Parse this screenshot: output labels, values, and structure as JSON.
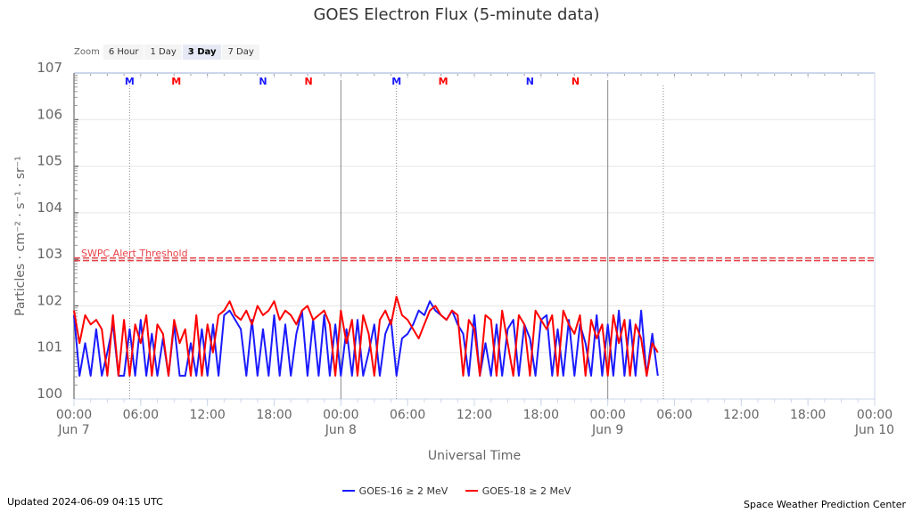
{
  "title": "GOES Electron Flux (5-minute data)",
  "zoom": {
    "label": "Zoom",
    "buttons": [
      "6 Hour",
      "1 Day",
      "3 Day",
      "7 Day"
    ],
    "active": "3 Day"
  },
  "footer": {
    "updated": "Updated 2024-06-09 04:15 UTC",
    "credit": "Space Weather Prediction Center"
  },
  "colors": {
    "goes16": "#1a1aff",
    "goes18": "#ff0000",
    "threshold": "#e8434a",
    "grid": "#e6e6e6"
  },
  "chart_data": {
    "type": "line",
    "title": "GOES Electron Flux (5-minute data)",
    "xlabel": "Universal Time",
    "ylabel": "Particles · cm⁻² · s⁻¹ · sr⁻¹",
    "y_scale": "log",
    "ylim_log10": [
      0,
      7
    ],
    "y_tick_labels": [
      "100",
      "101",
      "102",
      "103",
      "104",
      "105",
      "106",
      "107"
    ],
    "xlim_hours": [
      0,
      72
    ],
    "x_ticks": [
      {
        "h": 0,
        "label": "00:00",
        "date": "Jun 7"
      },
      {
        "h": 6,
        "label": "06:00"
      },
      {
        "h": 12,
        "label": "12:00"
      },
      {
        "h": 18,
        "label": "18:00"
      },
      {
        "h": 24,
        "label": "00:00",
        "date": "Jun 8"
      },
      {
        "h": 30,
        "label": "06:00"
      },
      {
        "h": 36,
        "label": "12:00"
      },
      {
        "h": 42,
        "label": "18:00"
      },
      {
        "h": 48,
        "label": "00:00",
        "date": "Jun 9"
      },
      {
        "h": 54,
        "label": "06:00"
      },
      {
        "h": 60,
        "label": "12:00"
      },
      {
        "h": 66,
        "label": "18:00"
      },
      {
        "h": 72,
        "label": "00:00",
        "date": "Jun 10"
      }
    ],
    "day_lines_hours": [
      24,
      48
    ],
    "dotted_lines_hours": [
      5,
      29,
      53
    ],
    "threshold": {
      "label": "SWPC Alert Threshold",
      "log10": 3
    },
    "markers": [
      {
        "h": 5,
        "text": "M",
        "series": "GOES-16"
      },
      {
        "h": 9.2,
        "text": "M",
        "series": "GOES-18"
      },
      {
        "h": 17,
        "text": "N",
        "series": "GOES-16"
      },
      {
        "h": 21.1,
        "text": "N",
        "series": "GOES-18"
      },
      {
        "h": 29,
        "text": "M",
        "series": "GOES-16"
      },
      {
        "h": 33.2,
        "text": "M",
        "series": "GOES-18"
      },
      {
        "h": 41,
        "text": "N",
        "series": "GOES-16"
      },
      {
        "h": 45.1,
        "text": "N",
        "series": "GOES-18"
      }
    ],
    "x_step_hours": 0.5,
    "series": [
      {
        "name": "GOES-16 ≥ 2 MeV",
        "key": "goes16",
        "log10_values": [
          1.8,
          0.5,
          1.2,
          0.5,
          1.5,
          0.5,
          1.0,
          1.6,
          0.5,
          0.5,
          1.5,
          0.5,
          1.7,
          0.5,
          1.4,
          0.5,
          1.3,
          0.5,
          1.6,
          0.5,
          0.5,
          1.2,
          0.5,
          1.5,
          0.5,
          1.6,
          0.5,
          1.8,
          1.9,
          1.7,
          1.5,
          0.5,
          1.7,
          0.5,
          1.5,
          0.5,
          1.8,
          0.5,
          1.6,
          0.5,
          1.4,
          1.9,
          0.5,
          1.7,
          0.5,
          1.8,
          0.5,
          1.6,
          0.5,
          1.5,
          0.5,
          1.7,
          0.5,
          1.0,
          1.6,
          0.5,
          1.4,
          1.7,
          0.5,
          1.3,
          1.4,
          1.6,
          1.9,
          1.8,
          2.1,
          1.9,
          1.8,
          1.7,
          1.9,
          1.6,
          1.4,
          0.5,
          1.8,
          0.5,
          1.2,
          0.5,
          1.6,
          0.5,
          1.5,
          1.7,
          0.5,
          1.6,
          1.3,
          0.5,
          1.7,
          1.8,
          0.5,
          1.5,
          0.5,
          1.7,
          0.5,
          1.6,
          1.2,
          0.5,
          1.8,
          0.5,
          1.6,
          0.5,
          1.9,
          0.5,
          1.7,
          0.5,
          1.9,
          0.5,
          1.4,
          0.5
        ]
      },
      {
        "name": "GOES-18 ≥ 2 MeV",
        "key": "goes18",
        "log10_values": [
          1.9,
          1.2,
          1.8,
          1.6,
          1.7,
          1.5,
          0.5,
          1.8,
          0.5,
          1.7,
          0.5,
          1.6,
          1.2,
          1.8,
          0.5,
          1.6,
          1.4,
          0.5,
          1.7,
          1.2,
          1.5,
          0.5,
          1.8,
          0.5,
          1.6,
          1.0,
          1.8,
          1.9,
          2.1,
          1.8,
          1.7,
          1.9,
          1.6,
          2.0,
          1.8,
          1.9,
          2.1,
          1.7,
          1.9,
          1.8,
          1.6,
          1.9,
          2.0,
          1.7,
          1.8,
          1.9,
          1.6,
          0.5,
          1.9,
          1.2,
          1.7,
          0.5,
          1.8,
          1.4,
          0.5,
          1.7,
          1.9,
          1.6,
          2.2,
          1.8,
          1.7,
          1.5,
          1.3,
          1.6,
          1.9,
          2.0,
          1.8,
          1.7,
          1.9,
          1.8,
          0.5,
          1.7,
          1.5,
          0.5,
          1.8,
          1.7,
          0.5,
          1.9,
          1.2,
          0.5,
          1.8,
          1.6,
          0.5,
          1.9,
          1.7,
          1.5,
          1.8,
          0.5,
          1.9,
          1.6,
          1.4,
          1.8,
          0.5,
          1.7,
          1.3,
          1.6,
          0.5,
          1.8,
          1.2,
          1.7,
          0.5,
          1.6,
          1.3,
          0.5,
          1.2,
          1.0
        ]
      }
    ],
    "legend_position": "bottom"
  }
}
